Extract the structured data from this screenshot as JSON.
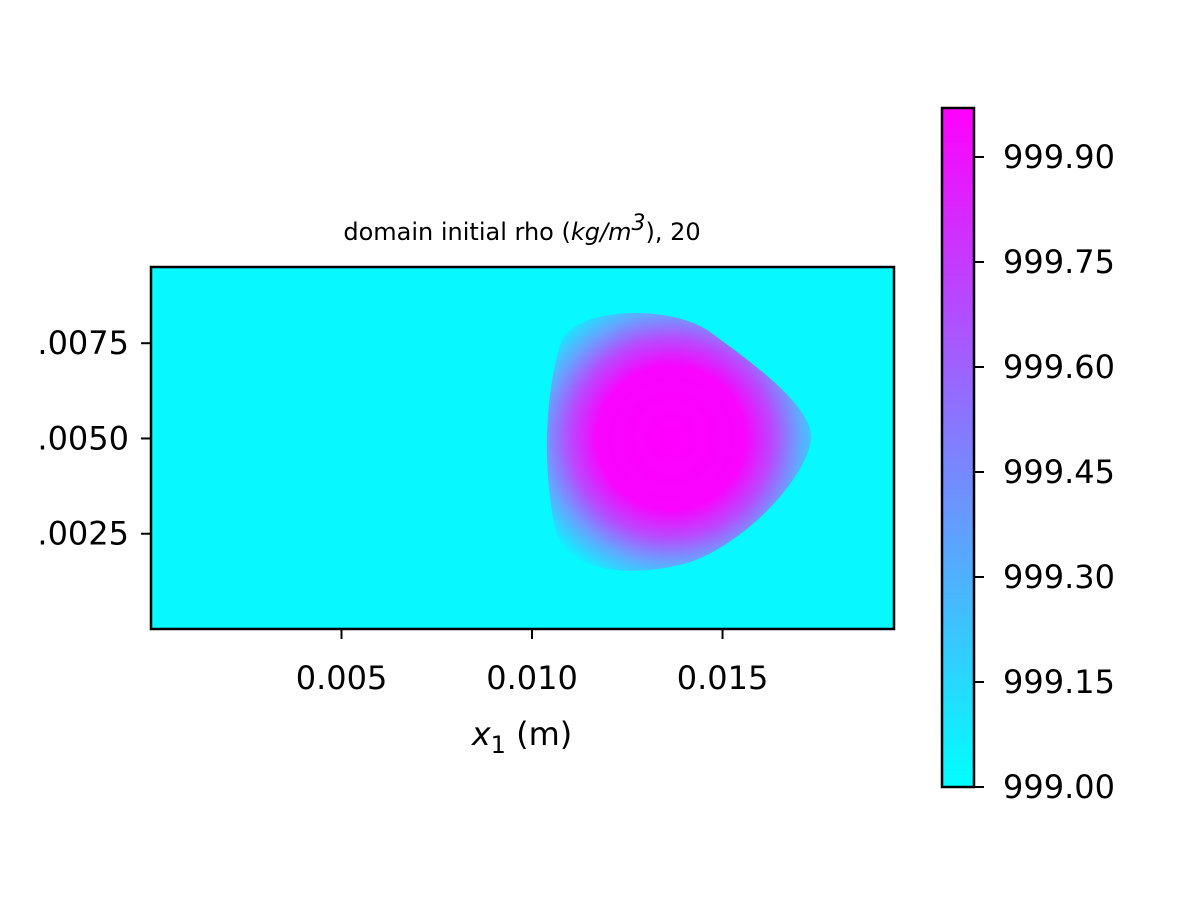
{
  "chart_data": {
    "type": "heatmap",
    "title": {
      "prefix": "domain initial rho (",
      "unit_base": "kg/m",
      "unit_exp": "3",
      "suffix": "), 20"
    },
    "xlabel": {
      "var": "x",
      "sub": "1",
      "unit": " (m)"
    },
    "ylabel": "",
    "xlim": [
      0.0,
      0.0195
    ],
    "ylim": [
      0.0,
      0.0095
    ],
    "x_ticks": [
      0.005,
      0.01,
      0.015
    ],
    "x_tick_labels": [
      "0.005",
      "0.010",
      "0.015"
    ],
    "y_ticks": [
      0.0025,
      0.005,
      0.0075
    ],
    "y_tick_labels": [
      ".0025",
      ".0050",
      ".0075"
    ],
    "colormap": "cool",
    "colormap_low": "#00ffff",
    "colormap_high": "#ff00ff",
    "field": {
      "background": 999.0,
      "peak": 999.97,
      "peak_center": [
        0.0136,
        0.005
      ],
      "peak_half_width_x": 0.0025,
      "peak_half_width_y": 0.002,
      "extent_x": [
        0.0105,
        0.0172
      ],
      "extent_y": [
        0.0015,
        0.0083
      ]
    },
    "colorbar": {
      "min": 999.0,
      "max": 999.97,
      "ticks": [
        999.0,
        999.15,
        999.3,
        999.45,
        999.6,
        999.75,
        999.9
      ],
      "tick_labels": [
        "999.00",
        "999.15",
        "999.30",
        "999.45",
        "999.60",
        "999.75",
        "999.90"
      ]
    }
  }
}
